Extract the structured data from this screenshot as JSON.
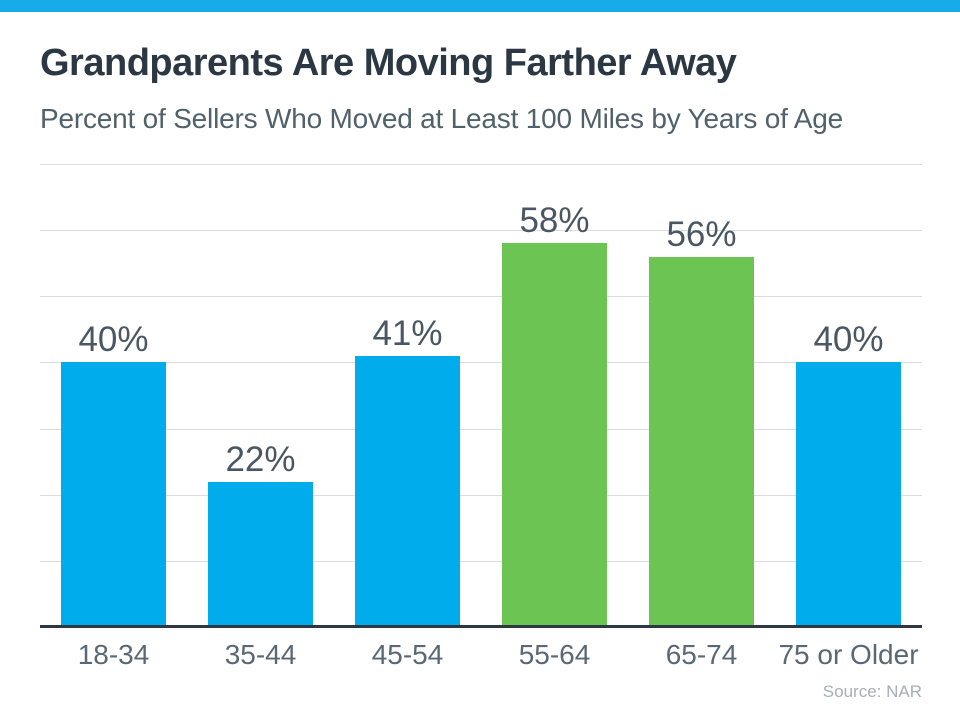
{
  "header": {
    "title": "Grandparents Are Moving Farther Away",
    "subtitle": "Percent of Sellers Who Moved at Least 100 Miles by Years of Age"
  },
  "footer": {
    "source": "Source: NAR"
  },
  "colors": {
    "accent_stripe": "#16ABE9",
    "bar_blue": "#00ACEC",
    "bar_green": "#6CC453",
    "gridline": "#D9DDE0",
    "axis_line": "#2E3842"
  },
  "chart_data": {
    "type": "bar",
    "title": "Grandparents Are Moving Farther Away",
    "subtitle": "Percent of Sellers Who Moved at Least 100 Miles by Years of Age",
    "categories": [
      "18-34",
      "35-44",
      "45-54",
      "55-64",
      "65-74",
      "75 or Older"
    ],
    "values": [
      40,
      22,
      41,
      58,
      56,
      40
    ],
    "value_labels": [
      "40%",
      "22%",
      "41%",
      "58%",
      "56%",
      "40%"
    ],
    "bar_colors": [
      "#00ACEC",
      "#00ACEC",
      "#00ACEC",
      "#6CC453",
      "#6CC453",
      "#00ACEC"
    ],
    "xlabel": "",
    "ylabel": "",
    "ylim": [
      0,
      70
    ],
    "gridline_step": 10,
    "grid": "horizontal-only",
    "legend": "none",
    "y_axis_tick_labels": "none",
    "source": "Source: NAR"
  }
}
